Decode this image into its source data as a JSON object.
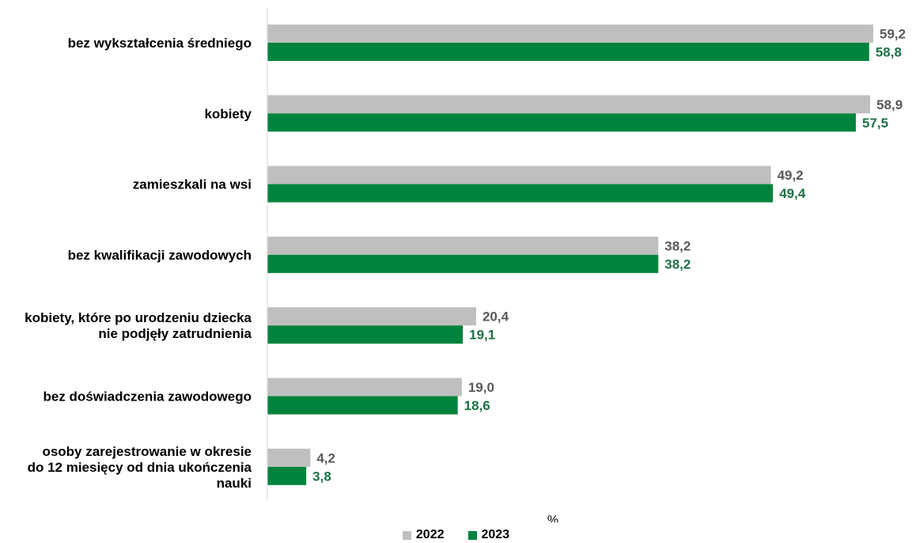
{
  "chart_data": {
    "type": "bar",
    "orientation": "horizontal",
    "categories": [
      [
        "bez wykształcenia średniego"
      ],
      [
        "kobiety"
      ],
      [
        "zamieszkali na wsi"
      ],
      [
        "bez kwalifikacji zawodowych"
      ],
      [
        "kobiety, które po urodzeniu dziecka",
        "nie podjęły zatrudnienia"
      ],
      [
        "bez doświadczenia zawodowego"
      ],
      [
        "osoby zarejestrowanie w okresie",
        "do 12 miesięcy od dnia ukończenia",
        "nauki"
      ]
    ],
    "series": [
      {
        "name": "2022",
        "color": "#bfbfbf",
        "label_color": "#595959",
        "values": [
          59.2,
          58.9,
          49.2,
          38.2,
          20.4,
          19.0,
          4.2
        ],
        "labels": [
          "59,2",
          "58,9",
          "49,2",
          "38,2",
          "20,4",
          "19,0",
          "4,2"
        ]
      },
      {
        "name": "2023",
        "color": "#00843d",
        "label_color": "#1e7145",
        "values": [
          58.8,
          57.5,
          49.4,
          38.2,
          19.1,
          18.6,
          3.8
        ],
        "labels": [
          "58,8",
          "57,5",
          "49,4",
          "38,2",
          "19,1",
          "18,6",
          "3,8"
        ]
      }
    ],
    "xlabel": "%",
    "xlim": [
      0,
      62
    ],
    "grid": false,
    "legend_position": "bottom"
  },
  "legend": {
    "item_2022": "2022",
    "item_2023": "2023"
  },
  "unit": "%"
}
